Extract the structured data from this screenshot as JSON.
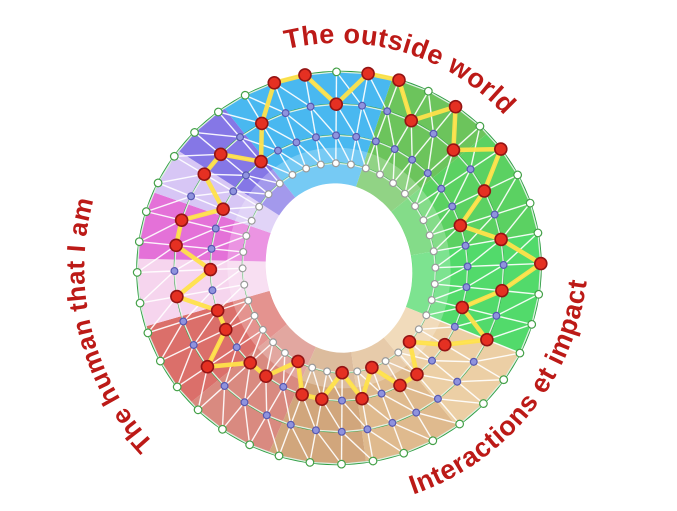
{
  "labels": {
    "top": "The outside world",
    "right": "Interactions et impact",
    "left": "The human that I am"
  },
  "wheel": {
    "spokes": 40,
    "ring_fracs": [
      1,
      0.71,
      0.43,
      0.18
    ],
    "sectors": [
      {
        "name": "sky-blue",
        "from": -25,
        "to": 25,
        "color": "#49b8f0"
      },
      {
        "name": "green-1",
        "from": 25,
        "to": 57,
        "color": "#6cc45c"
      },
      {
        "name": "green-2",
        "from": 57,
        "to": 90,
        "color": "#5bd162"
      },
      {
        "name": "green-3",
        "from": 90,
        "to": 126,
        "color": "#52da6b"
      },
      {
        "name": "tan-1",
        "from": 126,
        "to": 154,
        "color": "#eccfa5"
      },
      {
        "name": "tan-2",
        "from": 154,
        "to": 182,
        "color": "#dfba8e"
      },
      {
        "name": "tan-3",
        "from": 182,
        "to": 210,
        "color": "#d1a67c"
      },
      {
        "name": "red-1",
        "from": 210,
        "to": 237,
        "color": "#d98a80"
      },
      {
        "name": "red-2",
        "from": 237,
        "to": 263,
        "color": "#db6f6a"
      },
      {
        "name": "pink-pale",
        "from": 263,
        "to": 283,
        "color": "#f6d5ee"
      },
      {
        "name": "magenta",
        "from": 283,
        "to": 303,
        "color": "#e471d8"
      },
      {
        "name": "lavender",
        "from": 303,
        "to": 317,
        "color": "#d7c6f5"
      },
      {
        "name": "violet",
        "from": 317,
        "to": 335,
        "color": "#8577e6"
      }
    ],
    "levels": [
      0,
      1,
      0,
      0,
      1,
      0,
      1,
      0,
      1,
      2,
      1,
      0,
      1,
      2,
      1,
      2,
      3,
      2,
      2,
      3,
      2,
      3,
      2,
      2,
      3,
      2,
      2,
      1,
      2,
      2,
      1,
      2,
      1,
      1,
      2,
      1,
      1,
      2,
      1,
      0
    ],
    "colors": {
      "ring_line": "#2f9e44",
      "mesh_line": "#ffffff",
      "node_white_fill": "#ffffff",
      "node_white_stroke": "#43a047",
      "node_blue_fill": "#8f93de",
      "node_blue_stroke": "#5658b0",
      "selected_fill": "#e53022",
      "selected_stroke": "#941414",
      "trace": "#ffe14a",
      "label_color": "#bc1a17",
      "label_outline": "#ffffff"
    }
  }
}
